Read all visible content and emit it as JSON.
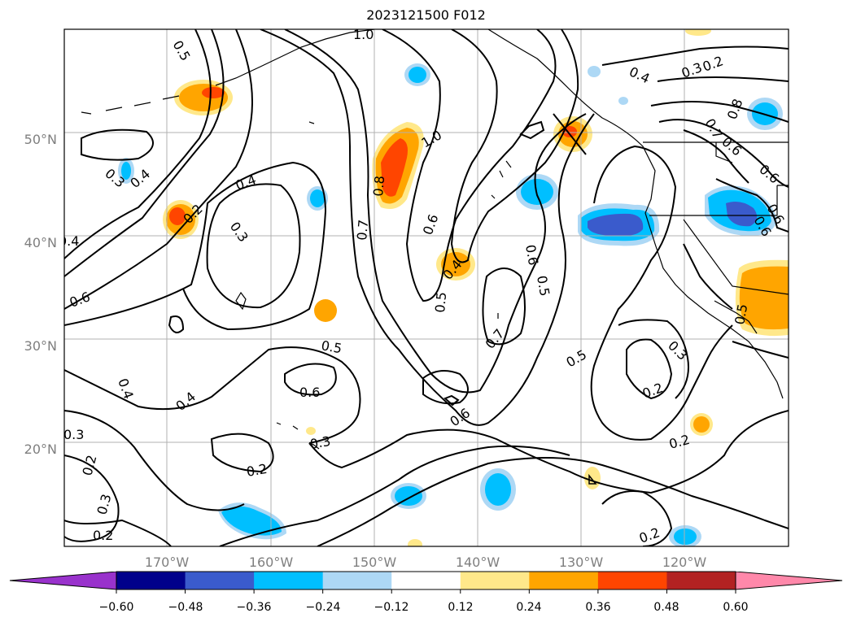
{
  "title": "2023121500 F012",
  "map": {
    "lat_ticks": [
      "20°N",
      "30°N",
      "40°N",
      "50°N"
    ],
    "lon_ticks": [
      "170°W",
      "160°W",
      "150°W",
      "140°W",
      "130°W",
      "120°W"
    ],
    "contour_labels": [
      "1.0",
      "0.5",
      "0.4",
      "0.3",
      "0.2",
      "0.7",
      "0.8",
      "0.6",
      "0.3",
      "0.4",
      "0.2",
      "0.4",
      "0.3",
      "1.0",
      "0.8",
      "0.7",
      "0.6",
      "0.4",
      "0.5",
      "0.6",
      "0.5",
      "0.7",
      "0.5",
      "0.3",
      "0.2",
      "0.6",
      "0.5",
      "0.6",
      "0.6",
      "0.4",
      "0.4",
      "0.3",
      "0.2",
      "0.3",
      "0.2",
      "0.3",
      "0.2",
      "0.2",
      "0.2",
      "0.4",
      "0.6",
      "0.6",
      "0.5",
      "0.6"
    ]
  },
  "colorbar": {
    "ticks": [
      "−0.60",
      "−0.48",
      "−0.36",
      "−0.24",
      "−0.12",
      "0.12",
      "0.24",
      "0.36",
      "0.48",
      "0.60"
    ],
    "colors": [
      "#9932cc",
      "#00008b",
      "#3a5bcc",
      "#00bfff",
      "#add8f5",
      "#ffffff",
      "#ffe88a",
      "#ffa500",
      "#ff4500",
      "#b22222",
      "#ff88aa"
    ]
  }
}
